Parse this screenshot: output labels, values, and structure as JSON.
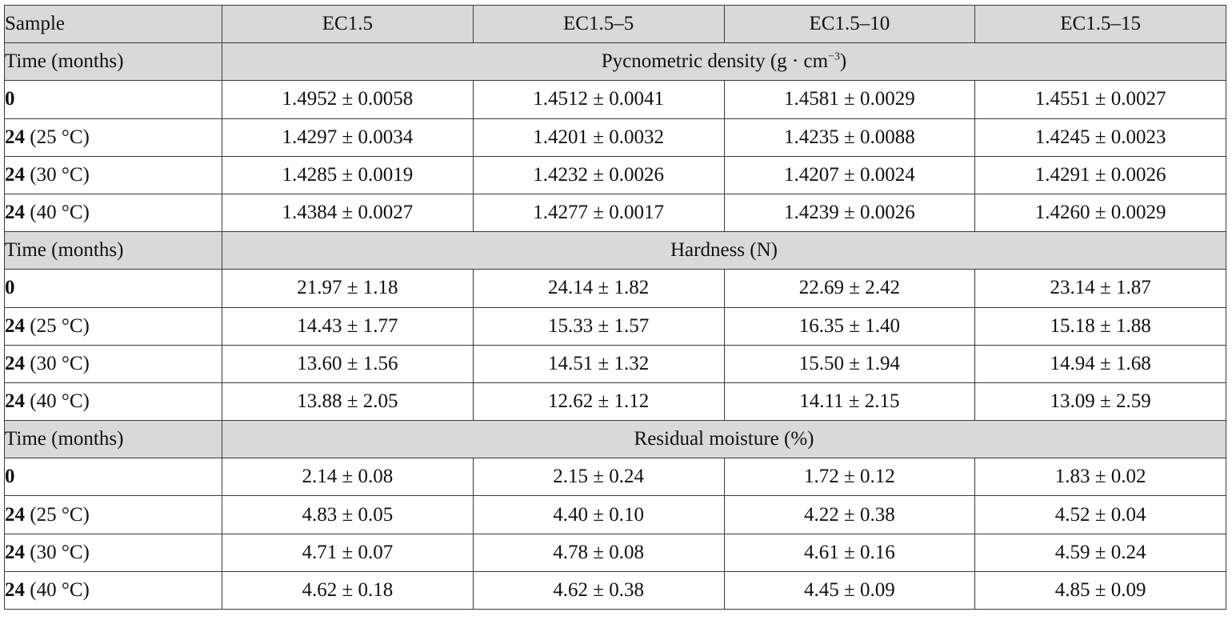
{
  "header": {
    "sample_label": "Sample",
    "columns": [
      "EC1.5",
      "EC1.5–5",
      "EC1.5–10",
      "EC1.5–15"
    ]
  },
  "sections": [
    {
      "time_label": "Time (months)",
      "title_main": "Pycnometric density (g · cm",
      "title_sup": "−3",
      "title_end": ")",
      "rows": [
        {
          "time": "0",
          "cond": "",
          "values": [
            "1.4952 ± 0.0058",
            "1.4512 ± 0.0041",
            "1.4581 ± 0.0029",
            "1.4551 ± 0.0027"
          ]
        },
        {
          "time": "24",
          "cond": " (25 °C)",
          "values": [
            "1.4297 ± 0.0034",
            "1.4201 ± 0.0032",
            "1.4235 ± 0.0088",
            "1.4245 ± 0.0023"
          ]
        },
        {
          "time": "24",
          "cond": " (30 °C)",
          "values": [
            "1.4285 ± 0.0019",
            "1.4232 ± 0.0026",
            "1.4207 ± 0.0024",
            "1.4291 ± 0.0026"
          ]
        },
        {
          "time": "24",
          "cond": " (40 °C)",
          "values": [
            "1.4384 ± 0.0027",
            "1.4277 ± 0.0017",
            "1.4239 ± 0.0026",
            "1.4260 ± 0.0029"
          ]
        }
      ]
    },
    {
      "time_label": "Time (months)",
      "title_main": "Hardness (N)",
      "title_sup": "",
      "title_end": "",
      "rows": [
        {
          "time": "0",
          "cond": "",
          "values": [
            "21.97 ± 1.18",
            "24.14 ± 1.82",
            "22.69 ± 2.42",
            "23.14 ± 1.87"
          ]
        },
        {
          "time": "24",
          "cond": " (25 °C)",
          "values": [
            "14.43 ± 1.77",
            "15.33 ± 1.57",
            "16.35 ± 1.40",
            "15.18 ± 1.88"
          ]
        },
        {
          "time": "24",
          "cond": " (30 °C)",
          "values": [
            "13.60 ± 1.56",
            "14.51 ± 1.32",
            "15.50 ± 1.94",
            "14.94 ± 1.68"
          ]
        },
        {
          "time": "24",
          "cond": " (40 °C)",
          "values": [
            "13.88 ± 2.05",
            "12.62 ± 1.12",
            "14.11 ± 2.15",
            "13.09 ± 2.59"
          ]
        }
      ]
    },
    {
      "time_label": "Time (months)",
      "title_main": "Residual moisture (%)",
      "title_sup": "",
      "title_end": "",
      "rows": [
        {
          "time": "0",
          "cond": "",
          "values": [
            "2.14 ± 0.08",
            "2.15 ± 0.24",
            "1.72 ± 0.12",
            "1.83 ± 0.02"
          ]
        },
        {
          "time": "24",
          "cond": " (25 °C)",
          "values": [
            "4.83 ± 0.05",
            "4.40 ± 0.10",
            "4.22 ± 0.38",
            "4.52 ± 0.04"
          ]
        },
        {
          "time": "24",
          "cond": " (30 °C)",
          "values": [
            "4.71 ± 0.07",
            "4.78 ± 0.08",
            "4.61 ± 0.16",
            "4.59 ± 0.24"
          ]
        },
        {
          "time": "24",
          "cond": " (40 °C)",
          "values": [
            "4.62 ± 0.18",
            "4.62 ± 0.38",
            "4.45 ± 0.09",
            "4.85 ± 0.09"
          ]
        }
      ]
    }
  ]
}
